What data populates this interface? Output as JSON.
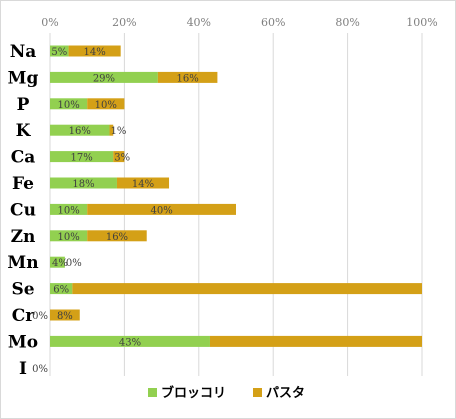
{
  "chart_data": {
    "type": "bar",
    "orientation": "horizontal",
    "stacked": true,
    "categories": [
      "Na",
      "Mg",
      "P",
      "K",
      "Ca",
      "Fe",
      "Cu",
      "Zn",
      "Mn",
      "Se",
      "Cr",
      "Mo",
      "I"
    ],
    "series": [
      {
        "name": "ブロッコリ",
        "color": "#92d050",
        "values": [
          5,
          29,
          10,
          16,
          17,
          18,
          10,
          10,
          4,
          6,
          0,
          43,
          0
        ]
      },
      {
        "name": "パスタ",
        "color": "#d4a017",
        "values": [
          14,
          16,
          10,
          1,
          3,
          14,
          40,
          16,
          0,
          94,
          8,
          57,
          null
        ]
      }
    ],
    "data_labels": [
      [
        "5%",
        "29%",
        "10%",
        "16%",
        "17%",
        "18%",
        "10%",
        "10%",
        "4%",
        "6%",
        "0%",
        "43%",
        "0%"
      ],
      [
        "14%",
        "16%",
        "10%",
        "1%",
        "3%",
        "14%",
        "40%",
        "16%",
        "0%",
        "",
        "8%",
        "",
        ""
      ]
    ],
    "xlim": [
      0,
      100
    ],
    "xticks": [
      "0%",
      "20%",
      "40%",
      "60%",
      "80%",
      "100%"
    ],
    "xaxis_position": "top",
    "grid": true,
    "legend_position": "bottom",
    "title": "",
    "xlabel": "",
    "ylabel": ""
  }
}
